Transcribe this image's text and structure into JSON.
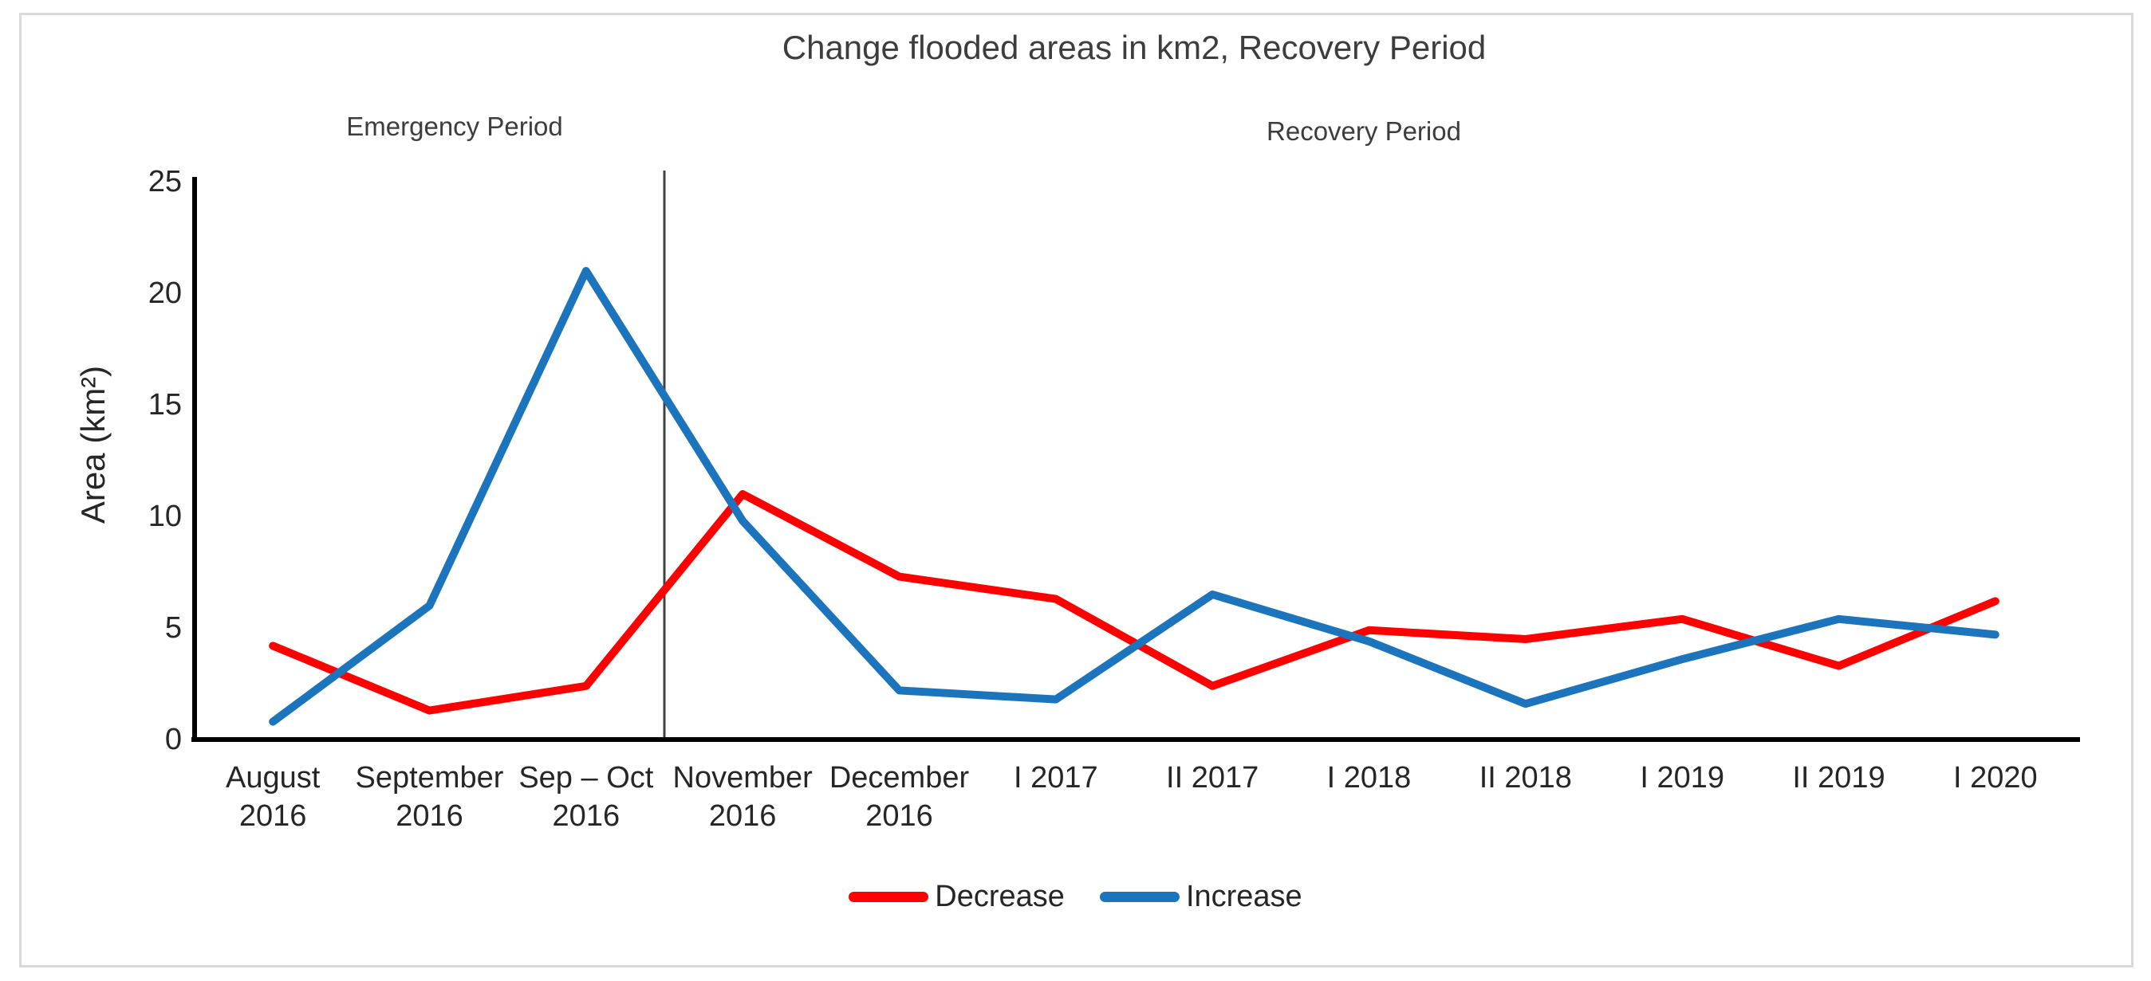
{
  "title": "Change flooded areas in km2, Recovery Period",
  "annotations": {
    "left": "Emergency Period",
    "right": "Recovery Period"
  },
  "colors": {
    "decrease": "#ff0000",
    "increase": "#1c75bc",
    "axis": "#000000",
    "separator": "#404040",
    "frame_border": "#d9d9d9",
    "text": "#262626"
  },
  "chart_data": {
    "type": "line",
    "title": "Change flooded areas in km2, Recovery Period",
    "ylabel": "Area (km²)",
    "xlabel": "",
    "ylim": [
      0,
      25
    ],
    "yticks": [
      0,
      5,
      10,
      15,
      20,
      25
    ],
    "grid": false,
    "legend_position": "bottom",
    "separator_after_index": 2,
    "categories": [
      [
        "August",
        "2016"
      ],
      [
        "September",
        "2016"
      ],
      [
        "Sep – Oct",
        "2016"
      ],
      [
        "November",
        "2016"
      ],
      [
        "December",
        "2016"
      ],
      [
        "I 2017"
      ],
      [
        "II 2017"
      ],
      [
        "I 2018"
      ],
      [
        "II 2018"
      ],
      [
        "I 2019"
      ],
      [
        "II 2019"
      ],
      [
        "I 2020"
      ]
    ],
    "series": [
      {
        "name": "Decrease",
        "color": "#ff0000",
        "values": [
          4.2,
          1.3,
          2.4,
          11,
          7.3,
          6.3,
          2.4,
          4.9,
          4.5,
          5.4,
          3.3,
          6.2
        ]
      },
      {
        "name": "Increase",
        "color": "#1c75bc",
        "values": [
          0.8,
          6,
          21,
          9.8,
          2.2,
          1.8,
          6.5,
          4.4,
          1.6,
          3.6,
          5.4,
          4.7
        ]
      }
    ]
  }
}
